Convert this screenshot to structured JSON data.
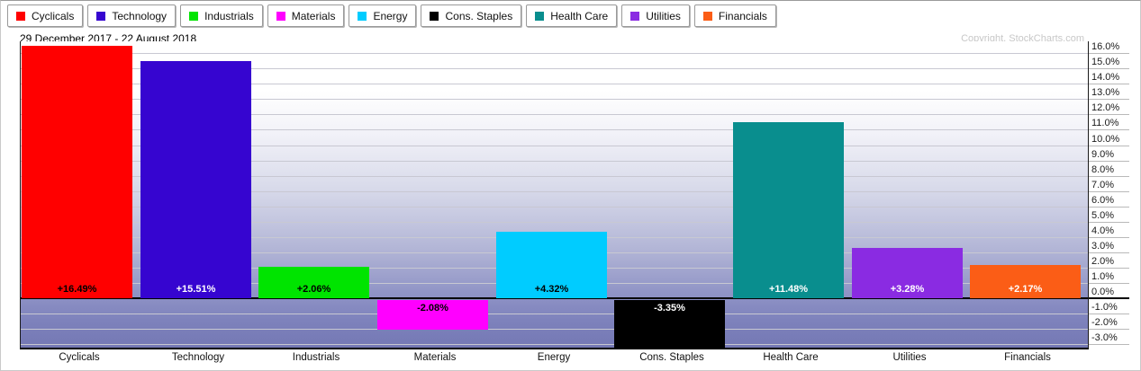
{
  "header": {
    "date_range": "29 December 2017 - 22 August 2018",
    "copyright": "Copyright, StockCharts.com"
  },
  "legend": {
    "items": [
      {
        "label": "Cyclicals",
        "color": "#FF0000"
      },
      {
        "label": "Technology",
        "color": "#3605D0"
      },
      {
        "label": "Industrials",
        "color": "#00E400"
      },
      {
        "label": "Materials",
        "color": "#FF00FF"
      },
      {
        "label": "Energy",
        "color": "#00CCFF"
      },
      {
        "label": "Cons. Staples",
        "color": "#000000"
      },
      {
        "label": "Health Care",
        "color": "#098E8E"
      },
      {
        "label": "Utilities",
        "color": "#8A2BE2"
      },
      {
        "label": "Financials",
        "color": "#FB5D16"
      }
    ]
  },
  "chart_data": {
    "type": "bar",
    "title": "29 December 2017 - 22 August 2018",
    "categories": [
      "Cyclicals",
      "Technology",
      "Industrials",
      "Materials",
      "Energy",
      "Cons. Staples",
      "Health Care",
      "Utilities",
      "Financials"
    ],
    "values": [
      16.49,
      15.51,
      2.06,
      -2.08,
      4.32,
      -3.35,
      11.48,
      3.28,
      2.17
    ],
    "bar_labels": [
      "+16.49%",
      "+15.51%",
      "+2.06%",
      "-2.08%",
      "+4.32%",
      "-3.35%",
      "+11.48%",
      "+3.28%",
      "+2.17%"
    ],
    "bar_colors": [
      "#FF0000",
      "#3605D0",
      "#00E400",
      "#FF00FF",
      "#00CCFF",
      "#000000",
      "#098E8E",
      "#8A2BE2",
      "#FB5D16"
    ],
    "value_label_colors": [
      "#000000",
      "#FFFFFF",
      "#000000",
      "#000000",
      "#000000",
      "#FFFFFF",
      "#FFFFFF",
      "#FFFFFF",
      "#FFFFFF"
    ],
    "xlabel": "",
    "ylabel": "",
    "ylim": [
      -3.35,
      16.8
    ],
    "ytick_values": [
      16,
      15,
      14,
      13,
      12,
      11,
      10,
      9,
      8,
      7,
      6,
      5,
      4,
      3,
      2,
      1,
      0,
      -1,
      -2,
      -3
    ],
    "ytick_labels": [
      "16.0%",
      "15.0%",
      "14.0%",
      "13.0%",
      "12.0%",
      "11.0%",
      "10.0%",
      "9.0%",
      "8.0%",
      "7.0%",
      "6.0%",
      "5.0%",
      "4.0%",
      "3.0%",
      "2.0%",
      "1.0%",
      "0.0%",
      "-1.0%",
      "-2.0%",
      "-3.0%"
    ],
    "grid": true,
    "zero_line": true,
    "legend_position": "top",
    "y_axis_side": "right"
  }
}
